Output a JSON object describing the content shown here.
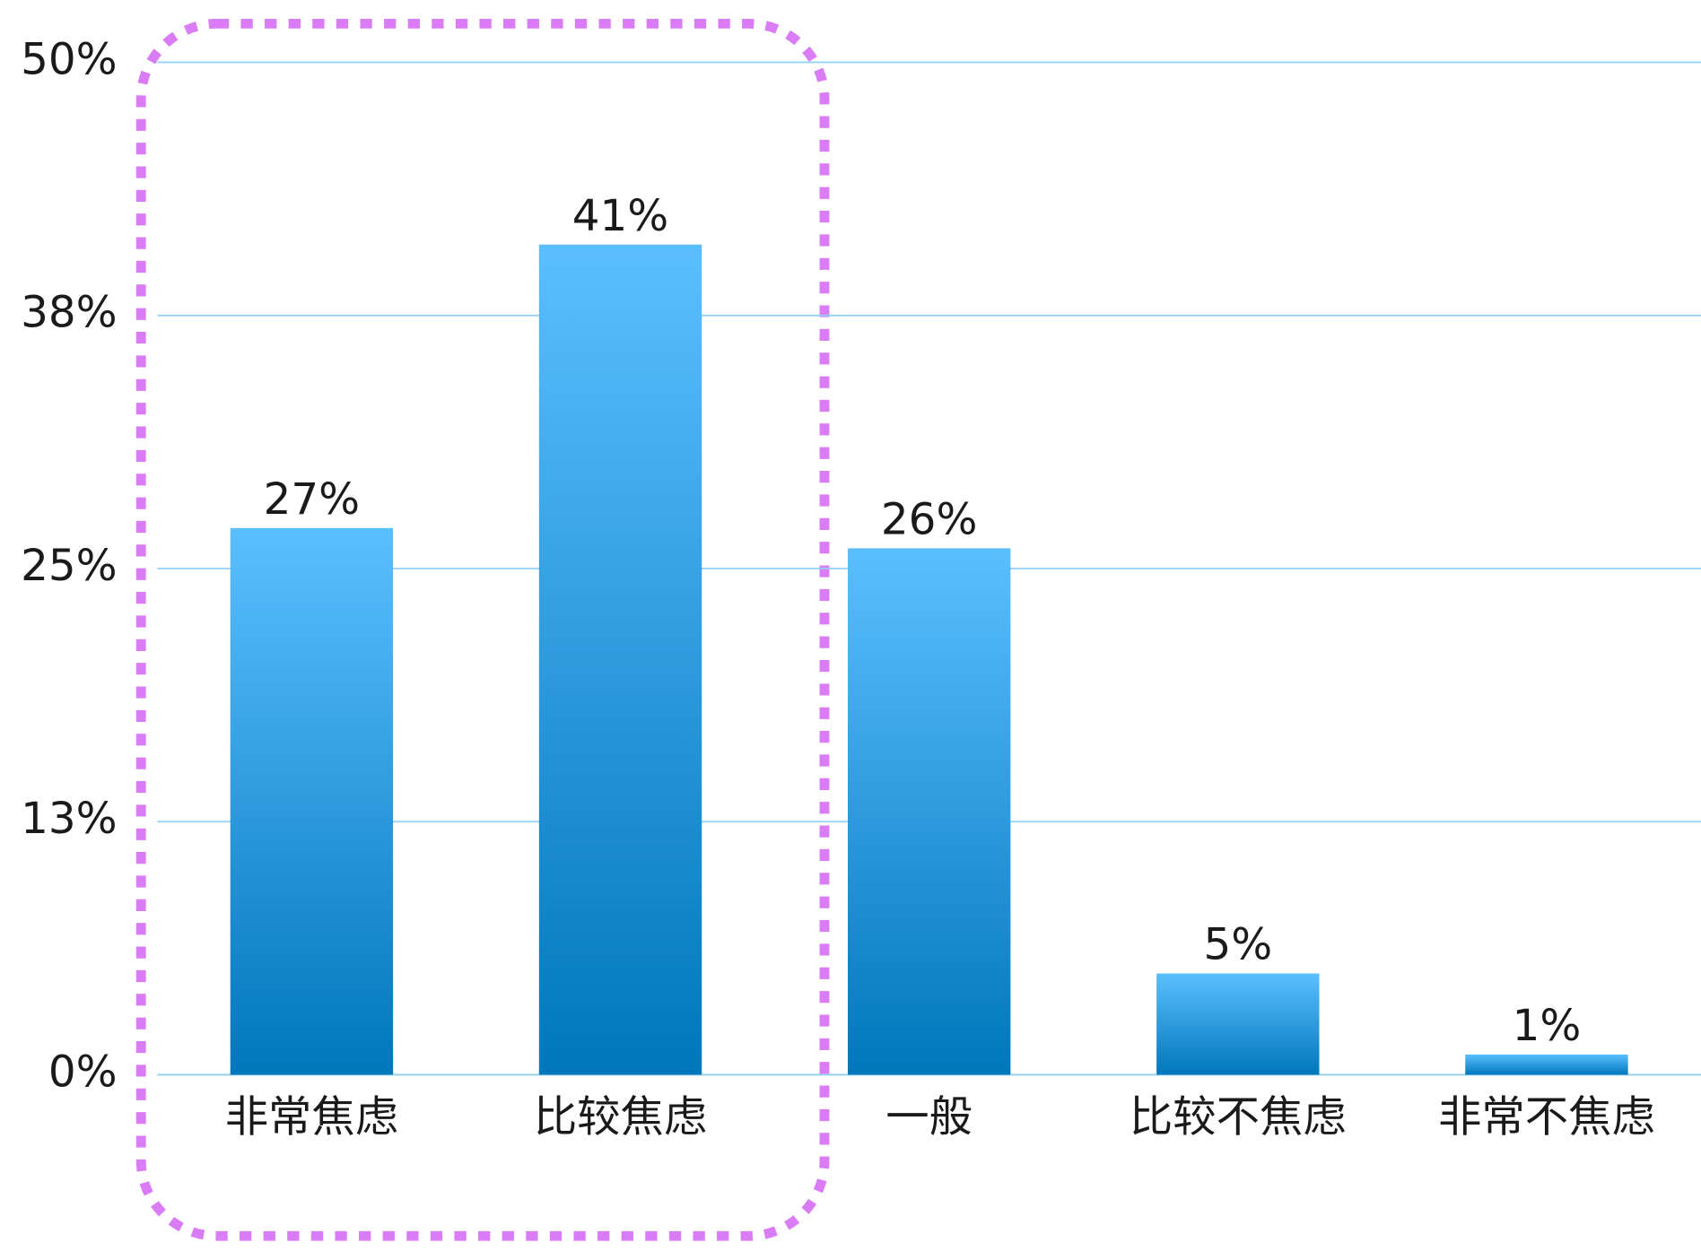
{
  "chart_data": {
    "type": "bar",
    "categories": [
      "非常焦虑",
      "比较焦虑",
      "一般",
      "比较不焦虑",
      "非常不焦虑"
    ],
    "values": [
      27,
      41,
      26,
      5,
      1
    ],
    "value_labels": [
      "27%",
      "41%",
      "26%",
      "5%",
      "1%"
    ],
    "color": "#0077bb",
    "ylim": [
      0,
      50
    ],
    "yticks": [
      {
        "value": 0,
        "label": "0%"
      },
      {
        "value": 12.5,
        "label": "13%"
      },
      {
        "value": 25,
        "label": "25%"
      },
      {
        "value": 37.5,
        "label": "38%"
      },
      {
        "value": 50,
        "label": "50%"
      }
    ],
    "grid": true
  }
}
